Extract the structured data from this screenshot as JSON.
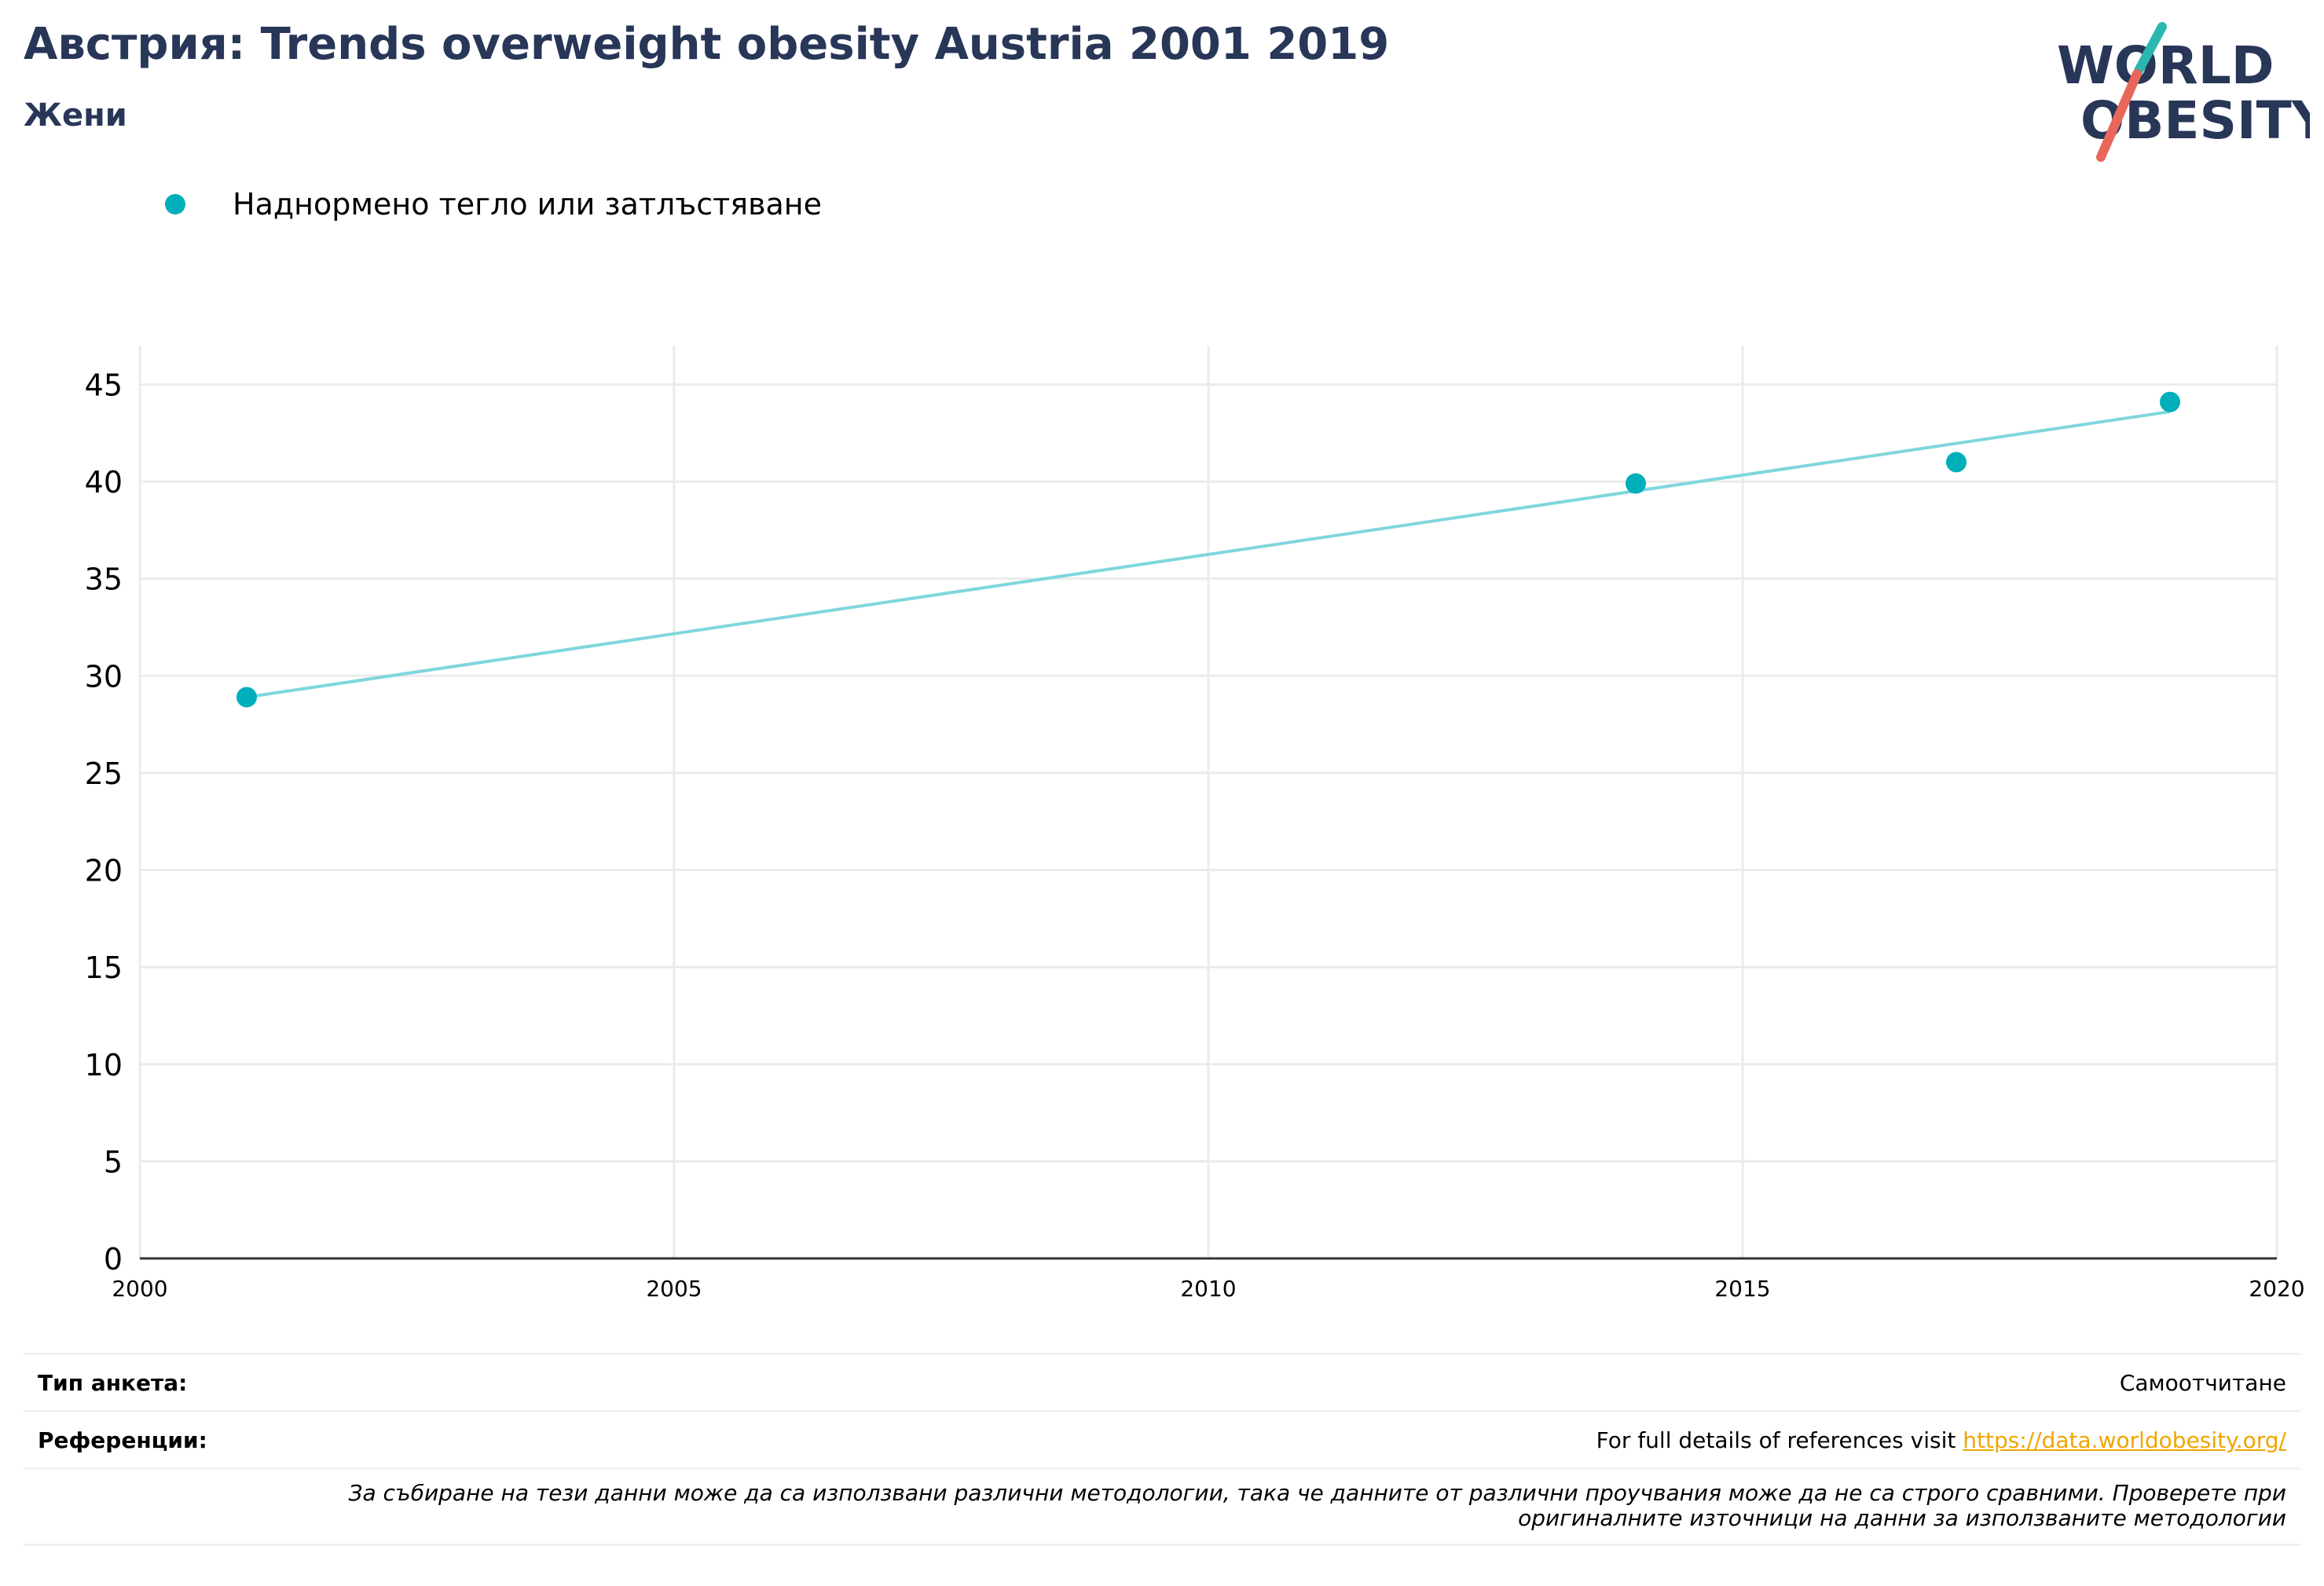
{
  "header": {
    "title": "Австрия: Trends overweight obesity Austria 2001 2019",
    "subtitle": "Жени"
  },
  "logo": {
    "line1": "WORLD",
    "line2": "OBESITY"
  },
  "colors": {
    "series": "#00afb9",
    "trend": "#7fd7dc",
    "title": "#283658",
    "grid": "#ebebeb",
    "link": "#f0a500"
  },
  "chart_data": {
    "type": "scatter",
    "title": "",
    "xlabel": "",
    "ylabel": "",
    "xlim": [
      2000,
      2020
    ],
    "ylim": [
      0,
      47
    ],
    "x_ticks": [
      "2000",
      "2005",
      "2010",
      "2015",
      "2020"
    ],
    "y_ticks": [
      "0",
      "5",
      "10",
      "15",
      "20",
      "25",
      "30",
      "35",
      "40",
      "45"
    ],
    "legend_position": "top-left",
    "grid": true,
    "series": [
      {
        "name": "Наднормено тегло или затлъстяване",
        "color": "#00afb9",
        "x": [
          2001,
          2014,
          2017,
          2019
        ],
        "y": [
          28.9,
          39.9,
          41.0,
          44.1
        ]
      }
    ],
    "trendline": {
      "x": [
        2001,
        2019
      ],
      "y": [
        28.9,
        43.6
      ],
      "color": "#7fd7dc"
    }
  },
  "footer": {
    "survey_type_label": "Тип анкета:",
    "survey_type_value": "Самоотчитане",
    "references_label": "Референции:",
    "references_text": "For full details of references visit ",
    "references_link": "https://data.worldobesity.org/",
    "note_line1": "За събиране на тези данни може да са използвани различни методологии, така че данните от различни проучвания може да не са строго сравними. Проверете при",
    "note_line2": "оригиналните източници на данни за използваните методологии"
  }
}
